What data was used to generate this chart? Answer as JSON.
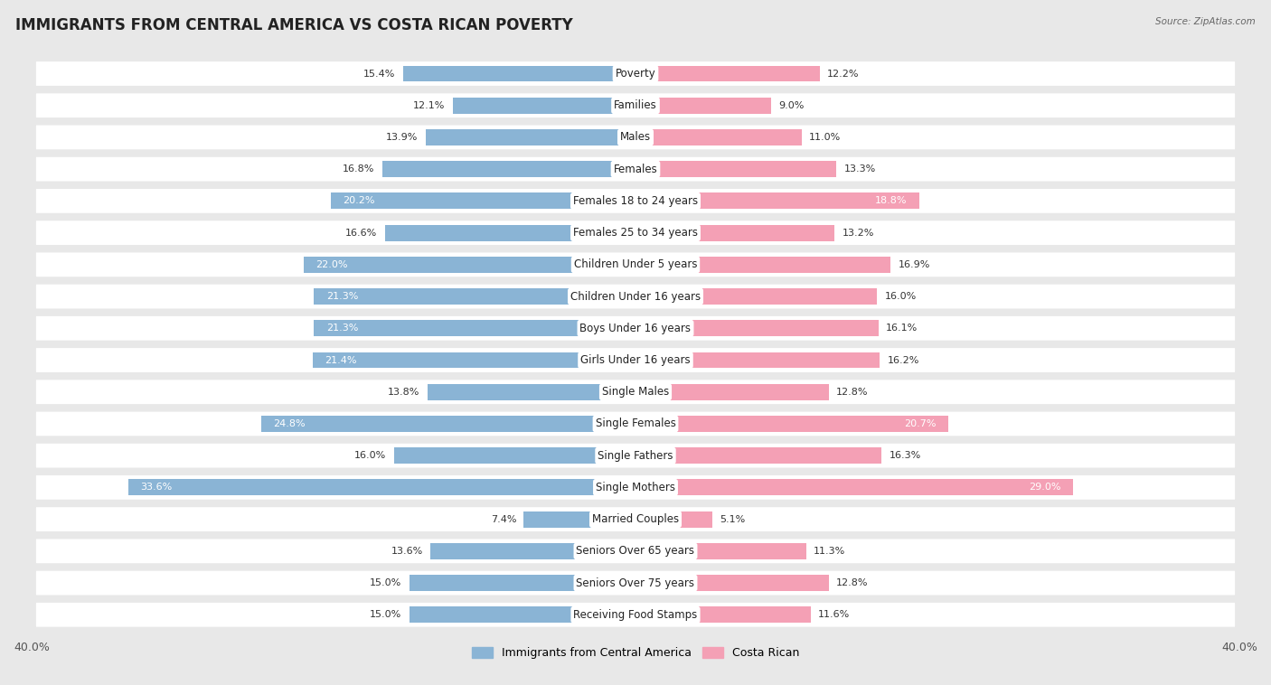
{
  "title": "IMMIGRANTS FROM CENTRAL AMERICA VS COSTA RICAN POVERTY",
  "source": "Source: ZipAtlas.com",
  "categories": [
    "Poverty",
    "Families",
    "Males",
    "Females",
    "Females 18 to 24 years",
    "Females 25 to 34 years",
    "Children Under 5 years",
    "Children Under 16 years",
    "Boys Under 16 years",
    "Girls Under 16 years",
    "Single Males",
    "Single Females",
    "Single Fathers",
    "Single Mothers",
    "Married Couples",
    "Seniors Over 65 years",
    "Seniors Over 75 years",
    "Receiving Food Stamps"
  ],
  "left_values": [
    15.4,
    12.1,
    13.9,
    16.8,
    20.2,
    16.6,
    22.0,
    21.3,
    21.3,
    21.4,
    13.8,
    24.8,
    16.0,
    33.6,
    7.4,
    13.6,
    15.0,
    15.0
  ],
  "right_values": [
    12.2,
    9.0,
    11.0,
    13.3,
    18.8,
    13.2,
    16.9,
    16.0,
    16.1,
    16.2,
    12.8,
    20.7,
    16.3,
    29.0,
    5.1,
    11.3,
    12.8,
    11.6
  ],
  "left_color": "#8ab4d5",
  "right_color": "#f4a0b5",
  "background_color": "#e8e8e8",
  "row_bg_color": "#ffffff",
  "xlim": 40.0,
  "legend_left": "Immigrants from Central America",
  "legend_right": "Costa Rican",
  "title_fontsize": 12,
  "label_fontsize": 8.5,
  "value_fontsize": 8.0,
  "axis_label_fontsize": 9,
  "inside_threshold": 18.0
}
